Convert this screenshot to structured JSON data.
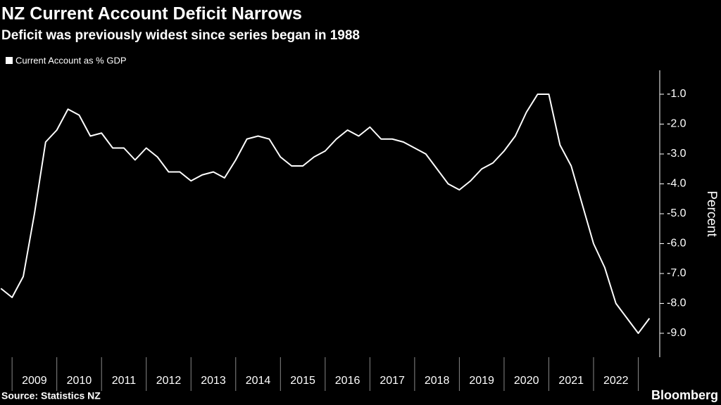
{
  "chart_data": {
    "type": "line",
    "title": "NZ Current Account Deficit Narrows",
    "subtitle": "Deficit was previously widest since series began in 1988",
    "source": "Source: Statistics NZ",
    "brand": "Bloomberg",
    "y_label": "Percent",
    "x": [
      2008.75,
      2009,
      2009.25,
      2009.5,
      2009.75,
      2010,
      2010.25,
      2010.5,
      2010.75,
      2011,
      2011.25,
      2011.5,
      2011.75,
      2012,
      2012.25,
      2012.5,
      2012.75,
      2013,
      2013.25,
      2013.5,
      2013.75,
      2014,
      2014.25,
      2014.5,
      2014.75,
      2015,
      2015.25,
      2015.5,
      2015.75,
      2016,
      2016.25,
      2016.5,
      2016.75,
      2017,
      2017.25,
      2017.5,
      2017.75,
      2018,
      2018.25,
      2018.5,
      2018.75,
      2019,
      2019.25,
      2019.5,
      2019.75,
      2020,
      2020.25,
      2020.5,
      2020.75,
      2021,
      2021.25,
      2021.5,
      2021.75,
      2022,
      2022.25,
      2022.5,
      2022.75,
      2023,
      2023.25
    ],
    "series": [
      {
        "name": "Current Account as % GDP",
        "color": "#ffffff",
        "values": [
          -7.5,
          -7.8,
          -7.1,
          -5.0,
          -2.6,
          -2.2,
          -1.5,
          -1.7,
          -2.4,
          -2.3,
          -2.8,
          -2.8,
          -3.2,
          -2.8,
          -3.1,
          -3.6,
          -3.6,
          -3.9,
          -3.7,
          -3.6,
          -3.8,
          -3.2,
          -2.5,
          -2.4,
          -2.5,
          -3.1,
          -3.4,
          -3.4,
          -3.1,
          -2.9,
          -2.5,
          -2.2,
          -2.4,
          -2.1,
          -2.5,
          -2.5,
          -2.6,
          -2.8,
          -3.0,
          -3.5,
          -4.0,
          -4.2,
          -3.9,
          -3.5,
          -3.3,
          -2.9,
          -2.4,
          -1.6,
          -1.0,
          -1.0,
          -2.7,
          -3.4,
          -4.7,
          -6.0,
          -6.8,
          -8.0,
          -8.5,
          -9.0,
          -8.5
        ]
      }
    ],
    "xlim": [
      2008.73,
      2023.48
    ],
    "xticks": [
      {
        "value": 2009,
        "label": "2009"
      },
      {
        "value": 2010,
        "label": "2010"
      },
      {
        "value": 2011,
        "label": "2011"
      },
      {
        "value": 2012,
        "label": "2012"
      },
      {
        "value": 2013,
        "label": "2013"
      },
      {
        "value": 2014,
        "label": "2014"
      },
      {
        "value": 2015,
        "label": "2015"
      },
      {
        "value": 2016,
        "label": "2016"
      },
      {
        "value": 2017,
        "label": "2017"
      },
      {
        "value": 2018,
        "label": "2018"
      },
      {
        "value": 2019,
        "label": "2019"
      },
      {
        "value": 2020,
        "label": "2020"
      },
      {
        "value": 2021,
        "label": "2021"
      },
      {
        "value": 2022,
        "label": "2022"
      }
    ],
    "ylim": [
      -9.8,
      -0.2
    ],
    "yticks": [
      {
        "value": -1,
        "label": "-1.0"
      },
      {
        "value": -2,
        "label": "-2.0"
      },
      {
        "value": -3,
        "label": "-3.0"
      },
      {
        "value": -4,
        "label": "-4.0"
      },
      {
        "value": -5,
        "label": "-5.0"
      },
      {
        "value": -6,
        "label": "-6.0"
      },
      {
        "value": -7,
        "label": "-7.0"
      },
      {
        "value": -8,
        "label": "-8.0"
      },
      {
        "value": -9,
        "label": "-9.0"
      }
    ]
  }
}
